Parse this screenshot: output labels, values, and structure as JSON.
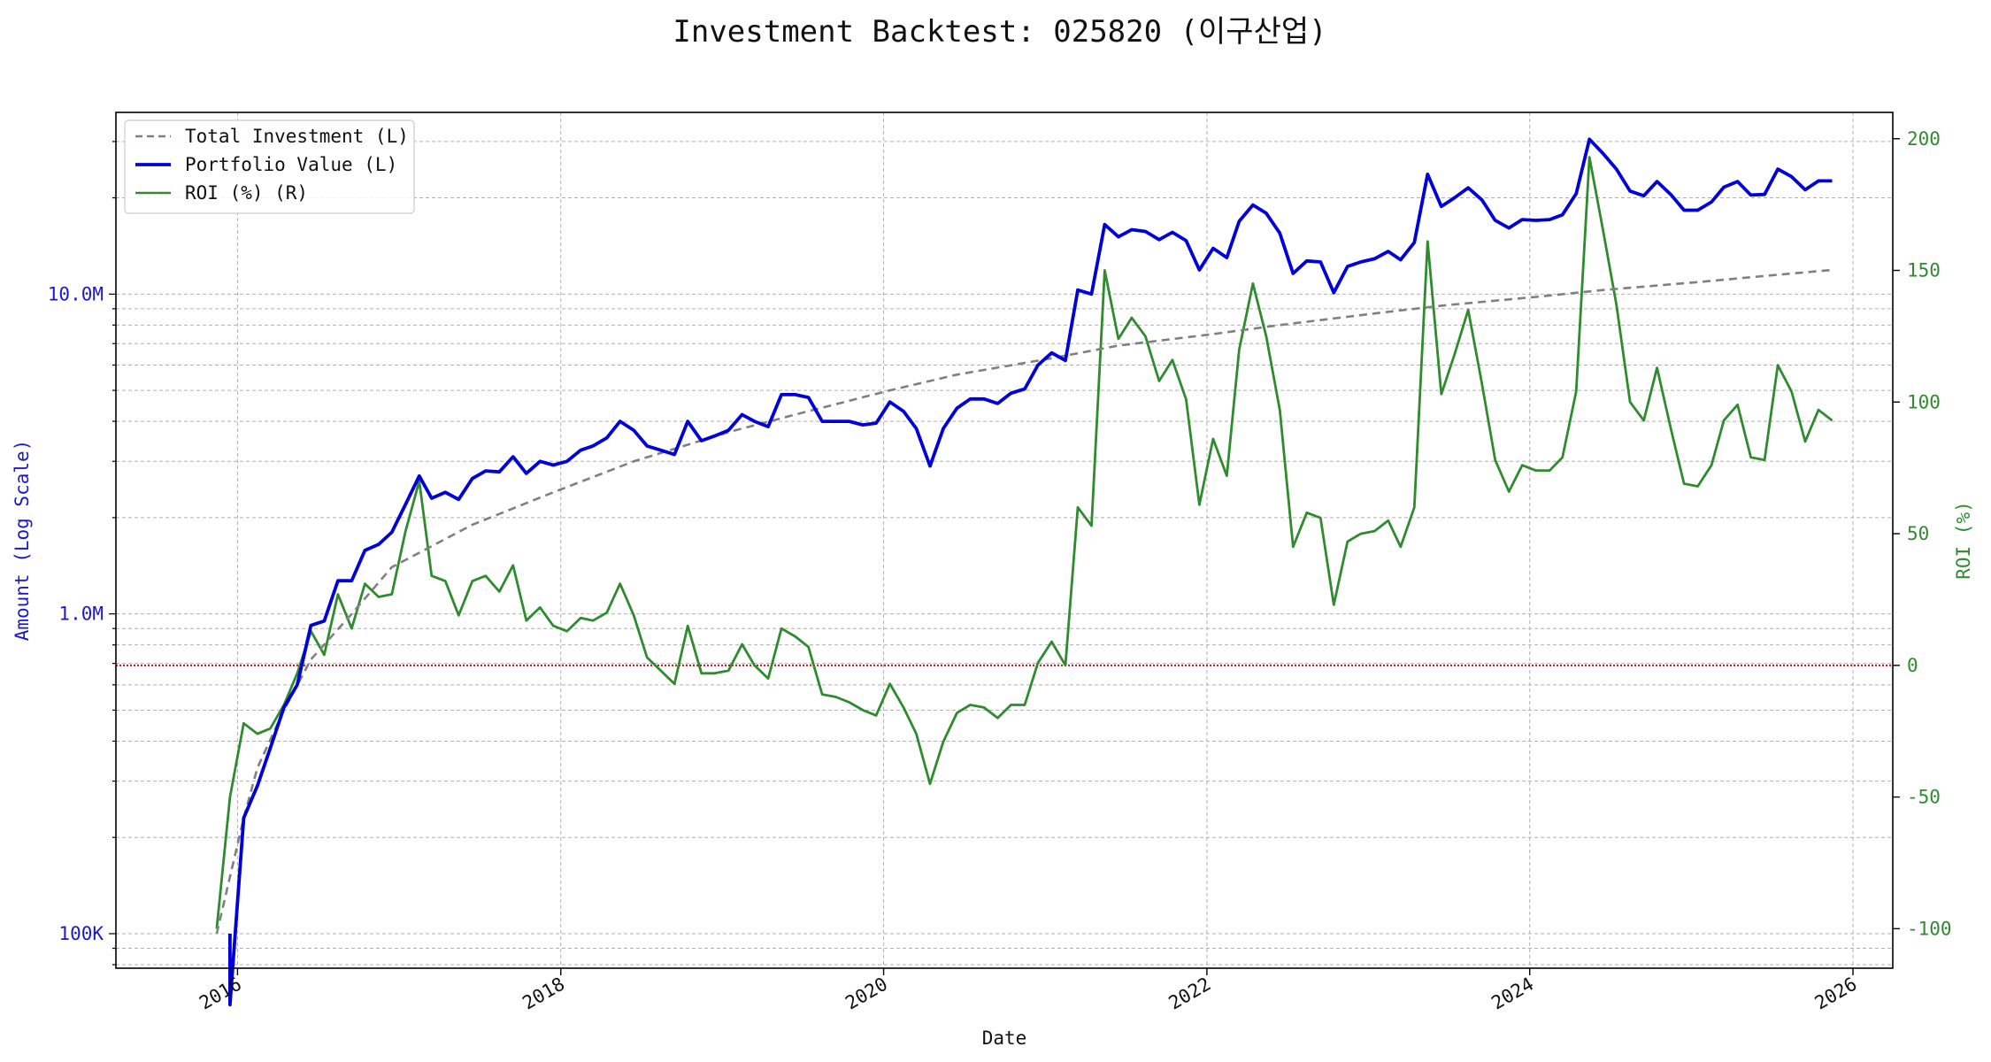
{
  "chart_data": {
    "type": "line",
    "title": "Investment Backtest: 025820 (이구산업)",
    "xlabel": "Date",
    "ylabel_left": "Amount (Log Scale)",
    "ylabel_right": "ROI (%)",
    "scale_left": "log",
    "xlim": [
      "2015-04-01",
      "2026-04-01"
    ],
    "ylim_left": [
      78000,
      37000000
    ],
    "ylim_right": [
      -115,
      210
    ],
    "grid": true,
    "legend_position": "top-left",
    "x_ticks": [
      "2016",
      "2018",
      "2020",
      "2022",
      "2024",
      "2026"
    ],
    "y_ticks_left": [
      "100K",
      "1.0M",
      "10.0M"
    ],
    "y_ticks_right": [
      "-100",
      "-50",
      "0",
      "50",
      "100",
      "150",
      "200"
    ],
    "reference_line": {
      "y": 0,
      "axis": "right",
      "color": "#cc0000"
    },
    "colors": {
      "total_investment": "#808080",
      "portfolio_value": "#0000dd",
      "roi": "#2e8b2e",
      "left_axis": "#1a1acc",
      "right_axis": "#2e8b2e"
    },
    "series": [
      {
        "name": "Total Investment (L)",
        "axis": "left",
        "style": "dashed",
        "points": [
          [
            "2015-11",
            100000
          ],
          [
            "2016-01",
            230000
          ],
          [
            "2016-02",
            330000
          ],
          [
            "2016-04",
            500000
          ],
          [
            "2016-06",
            720000
          ],
          [
            "2016-09",
            1000000
          ],
          [
            "2016-12",
            1400000
          ],
          [
            "2017-06",
            1900000
          ],
          [
            "2017-12",
            2400000
          ],
          [
            "2018-06",
            3000000
          ],
          [
            "2019-01",
            3700000
          ],
          [
            "2019-06",
            4200000
          ],
          [
            "2020-01",
            5000000
          ],
          [
            "2020-06",
            5600000
          ],
          [
            "2021-01",
            6300000
          ],
          [
            "2021-06",
            6900000
          ],
          [
            "2022-01",
            7500000
          ],
          [
            "2022-06",
            8000000
          ],
          [
            "2023-01",
            8700000
          ],
          [
            "2023-06",
            9200000
          ],
          [
            "2024-01",
            9800000
          ],
          [
            "2024-06",
            10300000
          ],
          [
            "2025-01",
            10900000
          ],
          [
            "2025-06",
            11400000
          ],
          [
            "2025-11",
            11900000
          ]
        ]
      },
      {
        "name": "Portfolio Value (L)",
        "axis": "left",
        "style": "solid",
        "points": [
          [
            "2015-12",
            100000
          ],
          [
            "2015-12",
            60000
          ],
          [
            "2016-01",
            230000
          ],
          [
            "2016-02",
            290000
          ],
          [
            "2016-03",
            380000
          ],
          [
            "2016-04",
            510000
          ],
          [
            "2016-05",
            600000
          ],
          [
            "2016-06",
            920000
          ],
          [
            "2016-07",
            950000
          ],
          [
            "2016-08",
            1270000
          ],
          [
            "2016-09",
            1270000
          ],
          [
            "2016-10",
            1580000
          ],
          [
            "2016-11",
            1650000
          ],
          [
            "2016-12",
            1800000
          ],
          [
            "2017-01",
            2200000
          ],
          [
            "2017-02",
            2700000
          ],
          [
            "2017-03",
            2300000
          ],
          [
            "2017-04",
            2400000
          ],
          [
            "2017-05",
            2280000
          ],
          [
            "2017-06",
            2650000
          ],
          [
            "2017-07",
            2800000
          ],
          [
            "2017-08",
            2780000
          ],
          [
            "2017-09",
            3100000
          ],
          [
            "2017-10",
            2750000
          ],
          [
            "2017-11",
            3000000
          ],
          [
            "2017-12",
            2920000
          ],
          [
            "2018-01",
            3000000
          ],
          [
            "2018-02",
            3250000
          ],
          [
            "2018-03",
            3350000
          ],
          [
            "2018-04",
            3550000
          ],
          [
            "2018-05",
            4000000
          ],
          [
            "2018-06",
            3750000
          ],
          [
            "2018-07",
            3350000
          ],
          [
            "2018-08",
            3250000
          ],
          [
            "2018-09",
            3150000
          ],
          [
            "2018-10",
            4000000
          ],
          [
            "2018-11",
            3480000
          ],
          [
            "2018-12",
            3600000
          ],
          [
            "2019-01",
            3750000
          ],
          [
            "2019-02",
            4200000
          ],
          [
            "2019-03",
            4000000
          ],
          [
            "2019-04",
            3850000
          ],
          [
            "2019-05",
            4850000
          ],
          [
            "2019-06",
            4850000
          ],
          [
            "2019-07",
            4750000
          ],
          [
            "2019-08",
            4000000
          ],
          [
            "2019-09",
            4000000
          ],
          [
            "2019-10",
            4000000
          ],
          [
            "2019-11",
            3900000
          ],
          [
            "2019-12",
            3950000
          ],
          [
            "2020-01",
            4600000
          ],
          [
            "2020-02",
            4300000
          ],
          [
            "2020-03",
            3800000
          ],
          [
            "2020-04",
            2900000
          ],
          [
            "2020-05",
            3800000
          ],
          [
            "2020-06",
            4400000
          ],
          [
            "2020-07",
            4700000
          ],
          [
            "2020-08",
            4700000
          ],
          [
            "2020-09",
            4550000
          ],
          [
            "2020-10",
            4900000
          ],
          [
            "2020-11",
            5050000
          ],
          [
            "2020-12",
            6000000
          ],
          [
            "2021-01",
            6550000
          ],
          [
            "2021-02",
            6200000
          ],
          [
            "2021-03",
            10300000
          ],
          [
            "2021-04",
            10000000
          ],
          [
            "2021-05",
            16500000
          ],
          [
            "2021-06",
            15100000
          ],
          [
            "2021-07",
            15900000
          ],
          [
            "2021-08",
            15700000
          ],
          [
            "2021-09",
            14800000
          ],
          [
            "2021-10",
            15600000
          ],
          [
            "2021-11",
            14700000
          ],
          [
            "2021-12",
            11900000
          ],
          [
            "2022-01",
            13900000
          ],
          [
            "2022-02",
            13000000
          ],
          [
            "2022-03",
            16900000
          ],
          [
            "2022-04",
            19000000
          ],
          [
            "2022-05",
            17900000
          ],
          [
            "2022-06",
            15500000
          ],
          [
            "2022-07",
            11600000
          ],
          [
            "2022-08",
            12700000
          ],
          [
            "2022-09",
            12600000
          ],
          [
            "2022-10",
            10100000
          ],
          [
            "2022-11",
            12200000
          ],
          [
            "2022-12",
            12600000
          ],
          [
            "2023-01",
            12900000
          ],
          [
            "2023-02",
            13600000
          ],
          [
            "2023-03",
            12800000
          ],
          [
            "2023-04",
            14500000
          ],
          [
            "2023-05",
            23700000
          ],
          [
            "2023-06",
            18800000
          ],
          [
            "2023-07",
            20000000
          ],
          [
            "2023-08",
            21500000
          ],
          [
            "2023-09",
            19700000
          ],
          [
            "2023-10",
            17000000
          ],
          [
            "2023-11",
            16100000
          ],
          [
            "2023-12",
            17100000
          ],
          [
            "2024-01",
            17000000
          ],
          [
            "2024-02",
            17100000
          ],
          [
            "2024-03",
            17700000
          ],
          [
            "2024-04",
            20600000
          ],
          [
            "2024-05",
            30500000
          ],
          [
            "2024-06",
            27500000
          ],
          [
            "2024-07",
            24600000
          ],
          [
            "2024-08",
            21000000
          ],
          [
            "2024-09",
            20300000
          ],
          [
            "2024-10",
            22500000
          ],
          [
            "2024-11",
            20500000
          ],
          [
            "2024-12",
            18300000
          ],
          [
            "2025-01",
            18300000
          ],
          [
            "2025-02",
            19400000
          ],
          [
            "2025-03",
            21600000
          ],
          [
            "2025-04",
            22500000
          ],
          [
            "2025-05",
            20400000
          ],
          [
            "2025-06",
            20500000
          ],
          [
            "2025-07",
            24600000
          ],
          [
            "2025-08",
            23300000
          ],
          [
            "2025-09",
            21200000
          ],
          [
            "2025-10",
            22600000
          ],
          [
            "2025-11",
            22600000
          ]
        ]
      },
      {
        "name": "ROI (%) (R)",
        "axis": "right",
        "style": "solid",
        "points": [
          [
            "2015-11",
            -100
          ],
          [
            "2015-12",
            -50
          ],
          [
            "2016-01",
            -22
          ],
          [
            "2016-02",
            -26
          ],
          [
            "2016-03",
            -24
          ],
          [
            "2016-04",
            -15
          ],
          [
            "2016-05",
            -3
          ],
          [
            "2016-06",
            13
          ],
          [
            "2016-07",
            4
          ],
          [
            "2016-08",
            27
          ],
          [
            "2016-09",
            14
          ],
          [
            "2016-10",
            31
          ],
          [
            "2016-11",
            26
          ],
          [
            "2016-12",
            27
          ],
          [
            "2017-01",
            51
          ],
          [
            "2017-02",
            70
          ],
          [
            "2017-03",
            34
          ],
          [
            "2017-04",
            32
          ],
          [
            "2017-05",
            19
          ],
          [
            "2017-06",
            32
          ],
          [
            "2017-07",
            34
          ],
          [
            "2017-08",
            28
          ],
          [
            "2017-09",
            38
          ],
          [
            "2017-10",
            17
          ],
          [
            "2017-11",
            22
          ],
          [
            "2017-12",
            15
          ],
          [
            "2018-01",
            13
          ],
          [
            "2018-02",
            18
          ],
          [
            "2018-03",
            17
          ],
          [
            "2018-04",
            20
          ],
          [
            "2018-05",
            31
          ],
          [
            "2018-06",
            19
          ],
          [
            "2018-07",
            3
          ],
          [
            "2018-08",
            -2
          ],
          [
            "2018-09",
            -7
          ],
          [
            "2018-10",
            15
          ],
          [
            "2018-11",
            -3
          ],
          [
            "2018-12",
            -3
          ],
          [
            "2019-01",
            -2
          ],
          [
            "2019-02",
            8
          ],
          [
            "2019-03",
            0
          ],
          [
            "2019-04",
            -5
          ],
          [
            "2019-05",
            14
          ],
          [
            "2019-06",
            11
          ],
          [
            "2019-07",
            7
          ],
          [
            "2019-08",
            -11
          ],
          [
            "2019-09",
            -12
          ],
          [
            "2019-10",
            -14
          ],
          [
            "2019-11",
            -17
          ],
          [
            "2019-12",
            -19
          ],
          [
            "2020-01",
            -7
          ],
          [
            "2020-02",
            -16
          ],
          [
            "2020-03",
            -26
          ],
          [
            "2020-04",
            -45
          ],
          [
            "2020-05",
            -29
          ],
          [
            "2020-06",
            -18
          ],
          [
            "2020-07",
            -15
          ],
          [
            "2020-08",
            -16
          ],
          [
            "2020-09",
            -20
          ],
          [
            "2020-10",
            -15
          ],
          [
            "2020-11",
            -15
          ],
          [
            "2020-12",
            1
          ],
          [
            "2021-01",
            9
          ],
          [
            "2021-02",
            0
          ],
          [
            "2021-03",
            60
          ],
          [
            "2021-04",
            53
          ],
          [
            "2021-05",
            150
          ],
          [
            "2021-06",
            124
          ],
          [
            "2021-07",
            132
          ],
          [
            "2021-08",
            125
          ],
          [
            "2021-09",
            108
          ],
          [
            "2021-10",
            116
          ],
          [
            "2021-11",
            101
          ],
          [
            "2021-12",
            61
          ],
          [
            "2022-01",
            86
          ],
          [
            "2022-02",
            72
          ],
          [
            "2022-03",
            120
          ],
          [
            "2022-04",
            145
          ],
          [
            "2022-05",
            125
          ],
          [
            "2022-06",
            97
          ],
          [
            "2022-07",
            45
          ],
          [
            "2022-08",
            58
          ],
          [
            "2022-09",
            56
          ],
          [
            "2022-10",
            23
          ],
          [
            "2022-11",
            47
          ],
          [
            "2022-12",
            50
          ],
          [
            "2023-01",
            51
          ],
          [
            "2023-02",
            55
          ],
          [
            "2023-03",
            45
          ],
          [
            "2023-04",
            60
          ],
          [
            "2023-05",
            161
          ],
          [
            "2023-06",
            103
          ],
          [
            "2023-07",
            118
          ],
          [
            "2023-08",
            135
          ],
          [
            "2023-09",
            107
          ],
          [
            "2023-10",
            78
          ],
          [
            "2023-11",
            66
          ],
          [
            "2023-12",
            76
          ],
          [
            "2024-01",
            74
          ],
          [
            "2024-02",
            74
          ],
          [
            "2024-03",
            79
          ],
          [
            "2024-04",
            104
          ],
          [
            "2024-05",
            193
          ],
          [
            "2024-06",
            165
          ],
          [
            "2024-07",
            137
          ],
          [
            "2024-08",
            100
          ],
          [
            "2024-09",
            93
          ],
          [
            "2024-10",
            113
          ],
          [
            "2024-11",
            90
          ],
          [
            "2024-12",
            69
          ],
          [
            "2025-01",
            68
          ],
          [
            "2025-02",
            76
          ],
          [
            "2025-03",
            93
          ],
          [
            "2025-04",
            99
          ],
          [
            "2025-05",
            79
          ],
          [
            "2025-06",
            78
          ],
          [
            "2025-07",
            114
          ],
          [
            "2025-08",
            104
          ],
          [
            "2025-09",
            85
          ],
          [
            "2025-10",
            97
          ],
          [
            "2025-11",
            93
          ]
        ]
      }
    ]
  }
}
